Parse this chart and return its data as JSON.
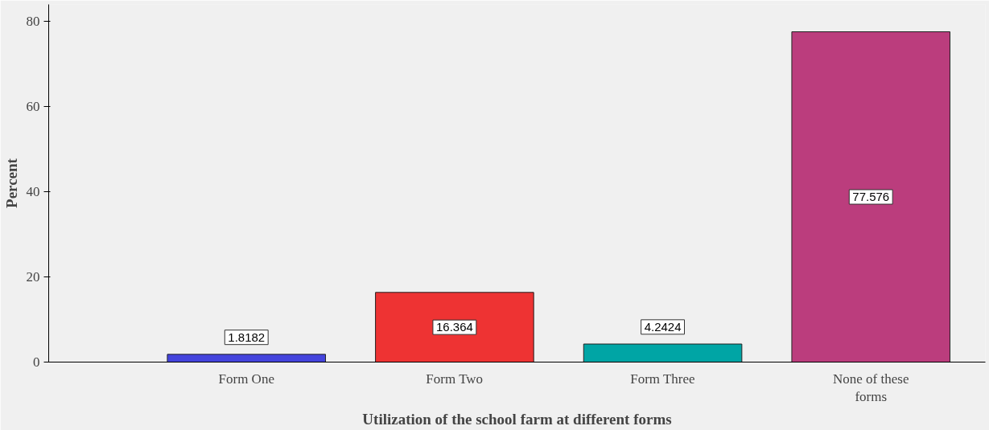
{
  "chart_data": {
    "type": "bar",
    "xlabel": "Utilization of the school farm at different forms",
    "ylabel": "Percent",
    "categories": [
      "Form One",
      "Form Two",
      "Form Three",
      "None of these forms"
    ],
    "values": [
      1.8182,
      16.364,
      4.2424,
      77.576
    ],
    "colors": [
      "#4444dd",
      "#ee3333",
      "#00a5a5",
      "#bb3d7d"
    ],
    "ylim": [
      0,
      84
    ],
    "yticks": [
      0,
      20,
      40,
      60,
      80
    ],
    "grid": false,
    "data_labels": true
  }
}
